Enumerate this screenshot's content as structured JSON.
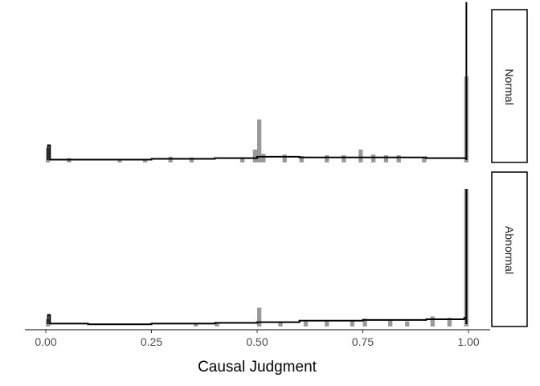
{
  "chart_data": {
    "type": "bar",
    "xlabel": "Causal Judgment",
    "ylabel": "",
    "xlim": [
      0,
      1
    ],
    "x_ticks": [
      0,
      0.25,
      0.5,
      0.75,
      1.0
    ],
    "x_tick_labels": [
      "0.00",
      "0.25",
      "0.50",
      "0.75",
      "1.00"
    ],
    "grid": false,
    "colors": {
      "histogram_bars": "#999999",
      "fitted_line": "#000000",
      "strip_border": "#000000"
    },
    "panels": [
      {
        "strip_label": "Normal",
        "y_max": 0.95,
        "histogram": [
          {
            "x": 0.005,
            "y": 0.1
          },
          {
            "x": 0.055,
            "y": 0.03
          },
          {
            "x": 0.175,
            "y": 0.02
          },
          {
            "x": 0.235,
            "y": 0.025
          },
          {
            "x": 0.295,
            "y": 0.04
          },
          {
            "x": 0.345,
            "y": 0.035
          },
          {
            "x": 0.465,
            "y": 0.035
          },
          {
            "x": 0.495,
            "y": 0.09
          },
          {
            "x": 0.505,
            "y": 0.3
          },
          {
            "x": 0.515,
            "y": 0.06
          },
          {
            "x": 0.565,
            "y": 0.055
          },
          {
            "x": 0.605,
            "y": 0.045
          },
          {
            "x": 0.665,
            "y": 0.05
          },
          {
            "x": 0.705,
            "y": 0.05
          },
          {
            "x": 0.745,
            "y": 0.09
          },
          {
            "x": 0.775,
            "y": 0.055
          },
          {
            "x": 0.805,
            "y": 0.05
          },
          {
            "x": 0.835,
            "y": 0.05
          },
          {
            "x": 0.895,
            "y": 0.04
          },
          {
            "x": 0.995,
            "y": 0.6
          }
        ],
        "fit_line": [
          {
            "x": 0.005,
            "y": 0.12
          },
          {
            "x": 0.01,
            "y": 0.02
          },
          {
            "x": 0.1,
            "y": 0.02
          },
          {
            "x": 0.25,
            "y": 0.025
          },
          {
            "x": 0.4,
            "y": 0.03
          },
          {
            "x": 0.5,
            "y": 0.04
          },
          {
            "x": 0.6,
            "y": 0.035
          },
          {
            "x": 0.75,
            "y": 0.035
          },
          {
            "x": 0.9,
            "y": 0.03
          },
          {
            "x": 0.99,
            "y": 0.03
          },
          {
            "x": 0.995,
            "y": 1.12
          }
        ]
      },
      {
        "strip_label": "Abnormal",
        "y_max": 0.95,
        "histogram": [
          {
            "x": 0.005,
            "y": 0.05
          },
          {
            "x": 0.355,
            "y": 0.02
          },
          {
            "x": 0.405,
            "y": 0.03
          },
          {
            "x": 0.505,
            "y": 0.13
          },
          {
            "x": 0.555,
            "y": 0.03
          },
          {
            "x": 0.615,
            "y": 0.035
          },
          {
            "x": 0.665,
            "y": 0.035
          },
          {
            "x": 0.725,
            "y": 0.035
          },
          {
            "x": 0.755,
            "y": 0.055
          },
          {
            "x": 0.815,
            "y": 0.04
          },
          {
            "x": 0.855,
            "y": 0.035
          },
          {
            "x": 0.915,
            "y": 0.07
          },
          {
            "x": 0.955,
            "y": 0.06
          },
          {
            "x": 0.995,
            "y": 0.95
          }
        ],
        "fit_line": [
          {
            "x": 0.005,
            "y": 0.08
          },
          {
            "x": 0.01,
            "y": 0.02
          },
          {
            "x": 0.1,
            "y": 0.015
          },
          {
            "x": 0.25,
            "y": 0.02
          },
          {
            "x": 0.4,
            "y": 0.025
          },
          {
            "x": 0.5,
            "y": 0.03
          },
          {
            "x": 0.6,
            "y": 0.04
          },
          {
            "x": 0.75,
            "y": 0.045
          },
          {
            "x": 0.9,
            "y": 0.05
          },
          {
            "x": 0.99,
            "y": 0.06
          },
          {
            "x": 0.995,
            "y": 0.95
          }
        ]
      }
    ]
  }
}
